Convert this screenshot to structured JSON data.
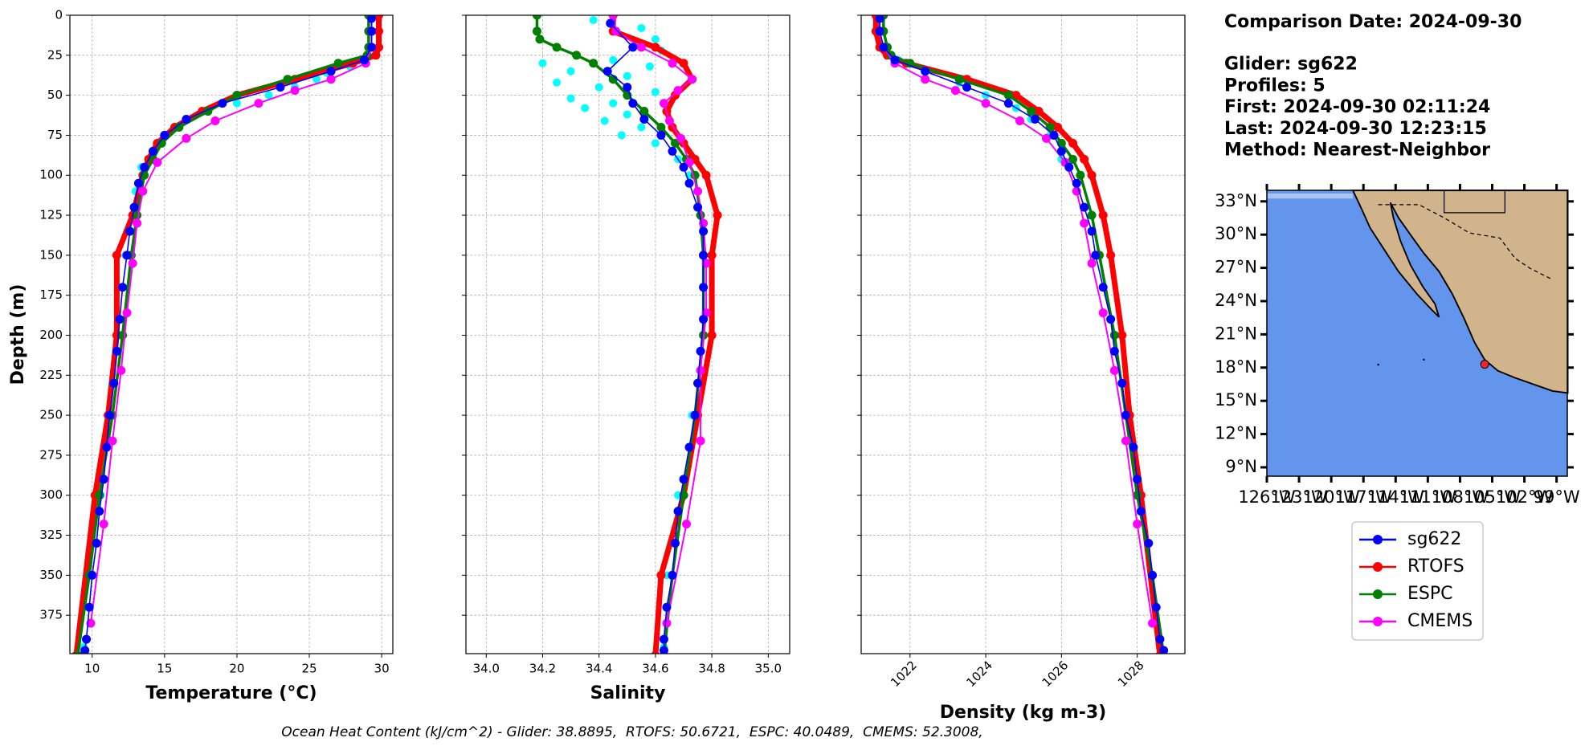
{
  "chart_data": [
    {
      "type": "line",
      "xlabel": "Temperature (°C)",
      "ylabel": "Depth (m)",
      "show_ytick_labels": true,
      "xlim": [
        8.46,
        30.77
      ],
      "xticks": [
        10,
        15,
        20,
        25,
        30
      ],
      "ylim": [
        399,
        0
      ],
      "yticks": [
        0,
        25,
        50,
        75,
        100,
        125,
        150,
        175,
        200,
        225,
        250,
        275,
        300,
        325,
        350,
        375
      ],
      "grid": true,
      "samples": {
        "color": "#00ffff",
        "depth": [
          20,
          28,
          32,
          36,
          40,
          45,
          50,
          55,
          60,
          70,
          80,
          95,
          110,
          150,
          200,
          250,
          300,
          350,
          395
        ],
        "values": [
          29.1,
          28.6,
          27.8,
          26.2,
          25.5,
          24.0,
          22.2,
          20.0,
          18.0,
          16.0,
          14.6,
          13.4,
          13.0,
          12.3,
          11.9,
          11.2,
          10.6,
          9.9,
          9.4
        ]
      },
      "series": [
        {
          "name": "sg622",
          "color": "#0000ff",
          "depth": [
            2,
            10,
            20,
            28,
            35,
            45,
            55,
            65,
            75,
            85,
            95,
            105,
            120,
            135,
            150,
            170,
            190,
            210,
            230,
            250,
            270,
            290,
            310,
            330,
            350,
            370,
            390,
            397
          ],
          "values": [
            29.3,
            29.3,
            29.3,
            28.8,
            26.5,
            23.0,
            19.0,
            16.5,
            15.0,
            14.2,
            13.6,
            13.2,
            12.9,
            12.6,
            12.4,
            12.1,
            11.9,
            11.7,
            11.5,
            11.2,
            11.0,
            10.8,
            10.5,
            10.3,
            10.0,
            9.8,
            9.6,
            9.5
          ]
        },
        {
          "name": "RTOFS",
          "color": "#ff0000",
          "depth": [
            0,
            10,
            20,
            25,
            30,
            40,
            50,
            60,
            70,
            80,
            90,
            100,
            125,
            150,
            200,
            250,
            300,
            400
          ],
          "values": [
            29.8,
            29.8,
            29.8,
            29.6,
            28.0,
            24.0,
            20.0,
            17.6,
            15.7,
            14.5,
            13.9,
            13.5,
            12.8,
            11.7,
            11.7,
            11.1,
            10.2,
            8.9
          ]
        },
        {
          "name": "ESPC",
          "color": "#008000",
          "depth": [
            0,
            10,
            20,
            25,
            30,
            40,
            50,
            60,
            70,
            80,
            90,
            100,
            125,
            150,
            200,
            250,
            300,
            350,
            400
          ],
          "values": [
            29.1,
            29.1,
            29.1,
            29.0,
            27.0,
            23.5,
            20.0,
            18.0,
            16.0,
            14.8,
            14.2,
            13.6,
            13.1,
            12.7,
            12.1,
            11.4,
            10.5,
            9.8,
            9.0
          ]
        },
        {
          "name": "CMEMS",
          "color": "#ff00ff",
          "depth": [
            0,
            10,
            20,
            30,
            40,
            47,
            55,
            66,
            77,
            92,
            110,
            130,
            155,
            186,
            222,
            266,
            318,
            380
          ],
          "values": [
            29.3,
            29.3,
            29.3,
            28.9,
            26.5,
            24.0,
            21.5,
            18.5,
            16.5,
            14.5,
            13.5,
            13.1,
            12.8,
            12.4,
            12.0,
            11.4,
            10.8,
            9.9
          ]
        }
      ]
    },
    {
      "type": "line",
      "xlabel": "Salinity",
      "show_ytick_labels": false,
      "xlim": [
        33.928,
        35.076
      ],
      "xticks": [
        {
          "value": 34,
          "label": "34.0"
        },
        34.2,
        34.4,
        34.6,
        34.8,
        {
          "value": 35,
          "label": "35.0"
        }
      ],
      "ylim": [
        399,
        0
      ],
      "yticks": [
        0,
        25,
        50,
        75,
        100,
        125,
        150,
        175,
        200,
        225,
        250,
        275,
        300,
        325,
        350,
        375
      ],
      "grid": true,
      "samples": {
        "color": "#00ffff",
        "depth": [
          3,
          8,
          15,
          22,
          28,
          30,
          32,
          35,
          38,
          42,
          45,
          48,
          52,
          55,
          58,
          62,
          66,
          70,
          75,
          80,
          90,
          100,
          150,
          200,
          250,
          300,
          350,
          395
        ],
        "values": [
          34.38,
          34.55,
          34.6,
          34.62,
          34.45,
          34.2,
          34.58,
          34.3,
          34.5,
          34.25,
          34.4,
          34.6,
          34.3,
          34.45,
          34.35,
          34.5,
          34.42,
          34.55,
          34.48,
          34.6,
          34.68,
          34.72,
          34.77,
          34.77,
          34.73,
          34.68,
          34.64,
          34.63
        ]
      },
      "series": [
        {
          "color": "#0000ff",
          "depth": [
            5,
            20,
            35,
            45,
            55,
            65,
            75,
            85,
            95,
            105,
            120,
            135,
            150,
            170,
            190,
            210,
            230,
            250,
            270,
            290,
            310,
            330,
            350,
            370,
            390,
            397
          ],
          "values": [
            34.44,
            34.52,
            34.43,
            34.5,
            34.52,
            34.56,
            34.62,
            34.66,
            34.7,
            34.72,
            34.75,
            34.77,
            34.77,
            34.77,
            34.77,
            34.76,
            34.75,
            34.74,
            34.72,
            34.7,
            34.68,
            34.67,
            34.66,
            34.64,
            34.63,
            34.63
          ]
        },
        {
          "color": "#ff0000",
          "depth": [
            0,
            10,
            20,
            30,
            40,
            50,
            60,
            70,
            80,
            90,
            100,
            125,
            150,
            200,
            250,
            300,
            350,
            400
          ],
          "values": [
            34.45,
            34.45,
            34.6,
            34.7,
            34.73,
            34.67,
            34.64,
            34.66,
            34.7,
            34.74,
            34.78,
            34.82,
            34.8,
            34.8,
            34.75,
            34.7,
            34.62,
            34.6
          ]
        },
        {
          "color": "#008000",
          "depth": [
            0,
            10,
            15,
            20,
            25,
            30,
            40,
            50,
            60,
            70,
            80,
            90,
            100,
            125,
            150,
            200,
            250,
            300,
            350,
            400
          ],
          "values": [
            34.18,
            34.18,
            34.19,
            34.25,
            34.32,
            34.38,
            34.45,
            34.5,
            34.56,
            34.62,
            34.67,
            34.71,
            34.74,
            34.76,
            34.77,
            34.77,
            34.74,
            34.7,
            34.66,
            34.63
          ]
        },
        {
          "color": "#ff00ff",
          "depth": [
            0,
            10,
            20,
            30,
            40,
            47,
            55,
            66,
            77,
            92,
            110,
            130,
            155,
            186,
            222,
            266,
            318,
            380
          ],
          "values": [
            34.45,
            34.46,
            34.55,
            34.66,
            34.73,
            34.68,
            34.63,
            34.65,
            34.69,
            34.72,
            34.75,
            34.77,
            34.78,
            34.78,
            34.76,
            34.76,
            34.71,
            34.64
          ]
        }
      ]
    },
    {
      "type": "line",
      "xlabel": "Density (kg m-3)",
      "show_ytick_labels": false,
      "rotate_xtick_labels": true,
      "xlim": [
        1020.71,
        1029.26
      ],
      "xticks": [
        1022,
        1024,
        1026,
        1028
      ],
      "ylim": [
        399,
        0
      ],
      "yticks": [
        0,
        25,
        50,
        75,
        100,
        125,
        150,
        175,
        200,
        225,
        250,
        275,
        300,
        325,
        350,
        375
      ],
      "grid": true,
      "samples": {
        "color": "#00ffff",
        "depth": [
          20,
          28,
          35,
          42,
          50,
          58,
          65,
          75,
          90,
          110,
          150,
          200,
          250,
          300,
          350,
          395
        ],
        "values": [
          1021.3,
          1021.7,
          1022.6,
          1023.3,
          1024.0,
          1024.8,
          1025.2,
          1025.7,
          1026.0,
          1026.4,
          1026.9,
          1027.4,
          1027.7,
          1028.1,
          1028.4,
          1028.6
        ]
      },
      "series": [
        {
          "color": "#0000ff",
          "depth": [
            2,
            10,
            20,
            28,
            35,
            45,
            55,
            65,
            75,
            85,
            95,
            105,
            120,
            135,
            150,
            170,
            190,
            210,
            230,
            250,
            270,
            290,
            310,
            330,
            350,
            370,
            390,
            397
          ],
          "values": [
            1021.2,
            1021.2,
            1021.3,
            1021.6,
            1022.4,
            1023.5,
            1024.6,
            1025.3,
            1025.8,
            1026.0,
            1026.2,
            1026.4,
            1026.6,
            1026.8,
            1026.9,
            1027.1,
            1027.3,
            1027.4,
            1027.6,
            1027.7,
            1027.9,
            1028.0,
            1028.1,
            1028.3,
            1028.4,
            1028.5,
            1028.6,
            1028.7
          ]
        },
        {
          "color": "#ff0000",
          "depth": [
            0,
            10,
            20,
            25,
            30,
            40,
            50,
            60,
            70,
            80,
            90,
            100,
            125,
            150,
            200,
            250,
            300,
            400
          ],
          "values": [
            1021.1,
            1021.1,
            1021.2,
            1021.4,
            1021.9,
            1023.5,
            1024.8,
            1025.4,
            1025.9,
            1026.3,
            1026.6,
            1026.8,
            1027.1,
            1027.3,
            1027.6,
            1027.8,
            1028.1,
            1028.6
          ]
        },
        {
          "color": "#008000",
          "depth": [
            0,
            10,
            20,
            25,
            30,
            40,
            50,
            60,
            70,
            80,
            90,
            100,
            125,
            150,
            200,
            250,
            300,
            350,
            400
          ],
          "values": [
            1021.3,
            1021.3,
            1021.4,
            1021.5,
            1022.0,
            1023.3,
            1024.6,
            1025.2,
            1025.7,
            1026.0,
            1026.3,
            1026.5,
            1026.8,
            1027.0,
            1027.4,
            1027.7,
            1028.0,
            1028.4,
            1028.7
          ]
        },
        {
          "color": "#ff00ff",
          "depth": [
            0,
            10,
            20,
            30,
            40,
            47,
            55,
            66,
            77,
            92,
            110,
            130,
            155,
            186,
            222,
            266,
            318,
            380
          ],
          "values": [
            1021.2,
            1021.2,
            1021.3,
            1021.6,
            1022.4,
            1023.2,
            1024.0,
            1024.9,
            1025.6,
            1026.1,
            1026.4,
            1026.6,
            1026.8,
            1027.1,
            1027.4,
            1027.7,
            1028.0,
            1028.4
          ]
        }
      ]
    },
    {
      "type": "map",
      "xlim": [
        -126,
        -98
      ],
      "ylim": [
        8.2,
        34.0
      ],
      "xticks": [
        {
          "value": -126,
          "label": "126°W"
        },
        {
          "value": -123,
          "label": "123°W"
        },
        {
          "value": -120,
          "label": "120°W"
        },
        {
          "value": -117,
          "label": "117°W"
        },
        {
          "value": -114,
          "label": "114°W"
        },
        {
          "value": -111,
          "label": "111°W"
        },
        {
          "value": -108,
          "label": "108°W"
        },
        {
          "value": -105,
          "label": "105°W"
        },
        {
          "value": -102,
          "label": "102°W"
        },
        {
          "value": -99,
          "label": "99°W"
        }
      ],
      "yticks": [
        {
          "value": 9,
          "label": "9°N"
        },
        {
          "value": 12,
          "label": "12°N"
        },
        {
          "value": 15,
          "label": "15°N"
        },
        {
          "value": 18,
          "label": "18°N"
        },
        {
          "value": 21,
          "label": "21°N"
        },
        {
          "value": 24,
          "label": "24°N"
        },
        {
          "value": 27,
          "label": "27°N"
        },
        {
          "value": 30,
          "label": "30°N"
        },
        {
          "value": 33,
          "label": "33°N"
        }
      ],
      "marker": {
        "lon": -105.7,
        "lat": 18.3,
        "color": "#e8262b"
      }
    }
  ],
  "info": [
    "Comparison Date: 2024-09-30",
    "Glider: sg622",
    "Profiles: 5",
    "First: 2024-09-30 02:11:24",
    "Last: 2024-09-30 12:23:15",
    "Method: Nearest-Neighbor"
  ],
  "caption": "Ocean Heat Content (kJ/cm^2) - Glider: 38.8895,  RTOFS: 50.6721,  ESPC: 40.0489,  CMEMS: 52.3008,"
}
